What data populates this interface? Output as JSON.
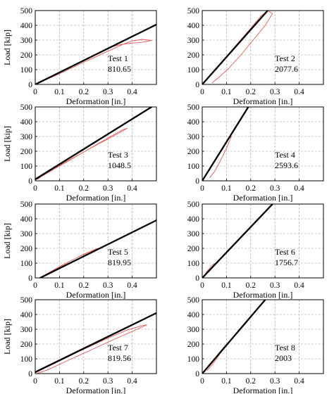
{
  "chart_data": [
    {
      "type": "line",
      "title": "",
      "xlabel": "Deformation [in.]",
      "ylabel": "Load [kip]",
      "xlim": [
        0,
        0.5
      ],
      "ylim": [
        0,
        500
      ],
      "grid": true,
      "xticks": [
        "0",
        "0.1",
        "0.2",
        "0.3",
        "0.4"
      ],
      "yticks": [
        "0",
        "100",
        "200",
        "300",
        "400",
        "500"
      ],
      "annotation": {
        "name": "Test 1",
        "value": "810.65"
      },
      "series": [
        {
          "color": "#000000",
          "x": [
            0,
            0.5
          ],
          "y": [
            0,
            405
          ]
        },
        {
          "color": "#e23b3b",
          "x": [
            0,
            0.1,
            0.2,
            0.3,
            0.36,
            0.4,
            0.44,
            0.48,
            0.44,
            0.4,
            0.36,
            0.33,
            0.28,
            0.22,
            0.14,
            0.06,
            0.01
          ],
          "y": [
            0,
            72,
            150,
            225,
            270,
            295,
            305,
            298,
            285,
            280,
            272,
            262,
            230,
            180,
            115,
            50,
            5
          ]
        }
      ]
    },
    {
      "type": "line",
      "title": "",
      "xlabel": "Deformation [in.]",
      "ylabel": "",
      "xlim": [
        0,
        0.5
      ],
      "ylim": [
        0,
        500
      ],
      "grid": true,
      "xticks": [
        "0",
        "0.1",
        "0.2",
        "0.3",
        "0.4"
      ],
      "yticks": [
        "0",
        "100",
        "200",
        "300",
        "400",
        "500"
      ],
      "annotation": {
        "name": "Test 2",
        "value": "2077.6"
      },
      "series": [
        {
          "color": "#000000",
          "x": [
            0,
            0.27
          ],
          "y": [
            0,
            500
          ]
        },
        {
          "color": "#e23b3b",
          "x": [
            0,
            0.05,
            0.1,
            0.15,
            0.2,
            0.24,
            0.27,
            0.29,
            0.26,
            0.21,
            0.16,
            0.11,
            0.07,
            0.04
          ],
          "y": [
            0,
            95,
            190,
            285,
            380,
            460,
            500,
            480,
            400,
            300,
            200,
            110,
            50,
            10
          ]
        }
      ]
    },
    {
      "type": "line",
      "title": "",
      "xlabel": "Deformation [in.]",
      "ylabel": "Load [kip]",
      "xlim": [
        0,
        0.5
      ],
      "ylim": [
        0,
        500
      ],
      "grid": true,
      "xticks": [
        "0",
        "0.1",
        "0.2",
        "0.3",
        "0.4"
      ],
      "yticks": [
        "0",
        "100",
        "200",
        "300",
        "400",
        "500"
      ],
      "annotation": {
        "name": "Test 3",
        "value": "1048.5"
      },
      "series": [
        {
          "color": "#000000",
          "x": [
            0,
            0.48
          ],
          "y": [
            10,
            500
          ]
        },
        {
          "color": "#e23b3b",
          "x": [
            0,
            0.1,
            0.2,
            0.3,
            0.36,
            0.38,
            0.33,
            0.25,
            0.15,
            0.05,
            0.01
          ],
          "y": [
            5,
            100,
            195,
            290,
            345,
            355,
            310,
            240,
            150,
            60,
            10
          ]
        }
      ]
    },
    {
      "type": "line",
      "title": "",
      "xlabel": "Deformation [in.]",
      "ylabel": "",
      "xlim": [
        0,
        0.5
      ],
      "ylim": [
        0,
        500
      ],
      "grid": true,
      "xticks": [
        "0",
        "0.1",
        "0.2",
        "0.3",
        "0.4"
      ],
      "yticks": [
        "0",
        "100",
        "200",
        "300",
        "400",
        "500"
      ],
      "annotation": {
        "name": "Test 4",
        "value": "2593.6"
      },
      "series": [
        {
          "color": "#000000",
          "x": [
            0,
            0.19
          ],
          "y": [
            0,
            500
          ]
        },
        {
          "color": "#e23b3b",
          "x": [
            0,
            0.03,
            0.06,
            0.09,
            0.11,
            0.12,
            0.1,
            0.07,
            0.05,
            0.03
          ],
          "y": [
            0,
            80,
            160,
            240,
            285,
            300,
            220,
            120,
            60,
            20
          ]
        }
      ]
    },
    {
      "type": "line",
      "title": "",
      "xlabel": "Deformation [in.]",
      "ylabel": "Load [kip]",
      "xlim": [
        0,
        0.5
      ],
      "ylim": [
        0,
        500
      ],
      "grid": true,
      "xticks": [
        "0",
        "0.1",
        "0.2",
        "0.3",
        "0.4"
      ],
      "yticks": [
        "0",
        "100",
        "200",
        "300",
        "400",
        "500"
      ],
      "annotation": {
        "name": "Test 5",
        "value": "819.95"
      },
      "series": [
        {
          "color": "#000000",
          "x": [
            0.02,
            0.5
          ],
          "y": [
            0,
            390
          ]
        },
        {
          "color": "#e23b3b",
          "x": [
            0.02,
            0.08,
            0.14,
            0.2,
            0.25,
            0.27,
            0.23,
            0.17,
            0.11,
            0.05,
            0.02
          ],
          "y": [
            0,
            55,
            110,
            160,
            195,
            205,
            180,
            135,
            85,
            30,
            2
          ]
        }
      ]
    },
    {
      "type": "line",
      "title": "",
      "xlabel": "Deformation [in.]",
      "ylabel": "",
      "xlim": [
        0,
        0.5
      ],
      "ylim": [
        0,
        500
      ],
      "grid": true,
      "xticks": [
        "0",
        "0.1",
        "0.2",
        "0.3",
        "0.4"
      ],
      "yticks": [
        "0",
        "100",
        "200",
        "300",
        "400",
        "500"
      ],
      "annotation": {
        "name": "Test 6",
        "value": "1756.7"
      },
      "series": [
        {
          "color": "#000000",
          "x": [
            0,
            0.29
          ],
          "y": [
            0,
            500
          ]
        },
        {
          "color": "#e23b3b",
          "x": [
            0,
            0.01,
            0.02,
            0.03,
            0.04,
            0.05,
            0.04,
            0.02,
            0.01
          ],
          "y": [
            0,
            20,
            45,
            65,
            85,
            95,
            70,
            35,
            10
          ]
        }
      ]
    },
    {
      "type": "line",
      "title": "",
      "xlabel": "Deformation [in.]",
      "ylabel": "Load [kip]",
      "xlim": [
        0,
        0.5
      ],
      "ylim": [
        0,
        500
      ],
      "grid": true,
      "xticks": [
        "0",
        "0.1",
        "0.2",
        "0.3",
        "0.4"
      ],
      "yticks": [
        "0",
        "100",
        "200",
        "300",
        "400",
        "500"
      ],
      "annotation": {
        "name": "Test 7",
        "value": "819.56"
      },
      "series": [
        {
          "color": "#000000",
          "x": [
            0,
            0.5
          ],
          "y": [
            10,
            410
          ]
        },
        {
          "color": "#e23b3b",
          "x": [
            0,
            0.1,
            0.2,
            0.3,
            0.38,
            0.44,
            0.46,
            0.42,
            0.33,
            0.23,
            0.13,
            0.05,
            0.01
          ],
          "y": [
            5,
            85,
            165,
            240,
            295,
            325,
            330,
            300,
            235,
            160,
            85,
            25,
            3
          ]
        }
      ]
    },
    {
      "type": "line",
      "title": "",
      "xlabel": "Deformation [in.]",
      "ylabel": "",
      "xlim": [
        0,
        0.5
      ],
      "ylim": [
        0,
        500
      ],
      "grid": true,
      "xticks": [
        "0",
        "0.1",
        "0.2",
        "0.3",
        "0.4"
      ],
      "yticks": [
        "0",
        "100",
        "200",
        "300",
        "400",
        "500"
      ],
      "annotation": {
        "name": "Test 8",
        "value": "2003"
      },
      "series": [
        {
          "color": "#000000",
          "x": [
            0,
            0.26
          ],
          "y": [
            0,
            500
          ]
        },
        {
          "color": "#e23b3b",
          "x": [
            0,
            0.03,
            0.06,
            0.09,
            0.1,
            0.08,
            0.05,
            0.02
          ],
          "y": [
            0,
            60,
            120,
            180,
            200,
            150,
            80,
            20
          ]
        }
      ]
    }
  ]
}
